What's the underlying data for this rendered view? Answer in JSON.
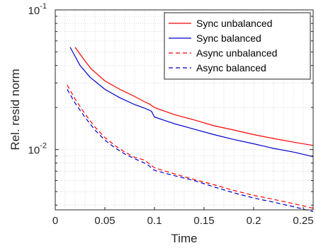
{
  "chart_data": {
    "type": "line",
    "xlabel": "Time",
    "ylabel": "Rel. resid norm",
    "xlim": [
      0,
      0.26
    ],
    "ylim": [
      0.0037,
      0.1
    ],
    "yscale": "log",
    "grid": true,
    "minor_grid": true,
    "legend_position": "top-right",
    "x_ticks": [
      {
        "value": 0,
        "label": "0"
      },
      {
        "value": 0.05,
        "label": "0.05"
      },
      {
        "value": 0.1,
        "label": "0.1"
      },
      {
        "value": 0.15,
        "label": "0.15"
      },
      {
        "value": 0.2,
        "label": "0.2"
      },
      {
        "value": 0.25,
        "label": "0.25"
      }
    ],
    "y_ticks": [
      {
        "value": 0.1,
        "base": "10",
        "exp": "-1"
      },
      {
        "value": 0.01,
        "base": "10",
        "exp": "-2"
      }
    ],
    "series": [
      {
        "name": "Sync unbalanced",
        "color": "#ff0000",
        "dash": "solid",
        "points": [
          [
            0.02,
            0.054
          ],
          [
            0.028,
            0.045
          ],
          [
            0.036,
            0.038
          ],
          [
            0.05,
            0.031
          ],
          [
            0.065,
            0.027
          ],
          [
            0.08,
            0.024
          ],
          [
            0.09,
            0.022
          ],
          [
            0.095,
            0.0212
          ],
          [
            0.1,
            0.02
          ],
          [
            0.12,
            0.0178
          ],
          [
            0.14,
            0.0163
          ],
          [
            0.16,
            0.0148
          ],
          [
            0.18,
            0.0138
          ],
          [
            0.2,
            0.0128
          ],
          [
            0.22,
            0.012
          ],
          [
            0.24,
            0.0113
          ],
          [
            0.26,
            0.0107
          ]
        ]
      },
      {
        "name": "Sync balanced",
        "color": "#0000cc",
        "dash": "solid",
        "points": [
          [
            0.015,
            0.054
          ],
          [
            0.025,
            0.04
          ],
          [
            0.035,
            0.033
          ],
          [
            0.05,
            0.027
          ],
          [
            0.065,
            0.0235
          ],
          [
            0.08,
            0.021
          ],
          [
            0.09,
            0.0198
          ],
          [
            0.097,
            0.0188
          ],
          [
            0.1,
            0.0171
          ],
          [
            0.12,
            0.0153
          ],
          [
            0.14,
            0.014
          ],
          [
            0.16,
            0.0128
          ],
          [
            0.18,
            0.0118
          ],
          [
            0.2,
            0.011
          ],
          [
            0.22,
            0.0102
          ],
          [
            0.24,
            0.0096
          ],
          [
            0.26,
            0.0089
          ]
        ]
      },
      {
        "name": "Async unbalanced",
        "color": "#ff0000",
        "dash": "dashed",
        "points": [
          [
            0.012,
            0.029
          ],
          [
            0.02,
            0.023
          ],
          [
            0.03,
            0.018
          ],
          [
            0.04,
            0.0145
          ],
          [
            0.05,
            0.0122
          ],
          [
            0.06,
            0.0107
          ],
          [
            0.07,
            0.0096
          ],
          [
            0.08,
            0.0088
          ],
          [
            0.09,
            0.0084
          ],
          [
            0.095,
            0.0079
          ],
          [
            0.1,
            0.0074
          ],
          [
            0.12,
            0.0067
          ],
          [
            0.14,
            0.0061
          ],
          [
            0.16,
            0.0056
          ],
          [
            0.18,
            0.0051
          ],
          [
            0.2,
            0.0047
          ],
          [
            0.22,
            0.0044
          ],
          [
            0.24,
            0.0041
          ],
          [
            0.26,
            0.0038
          ]
        ]
      },
      {
        "name": "Async balanced",
        "color": "#0000cc",
        "dash": "dashed",
        "points": [
          [
            0.012,
            0.027
          ],
          [
            0.02,
            0.0215
          ],
          [
            0.03,
            0.017
          ],
          [
            0.04,
            0.0138
          ],
          [
            0.05,
            0.0117
          ],
          [
            0.06,
            0.0103
          ],
          [
            0.07,
            0.0093
          ],
          [
            0.08,
            0.0086
          ],
          [
            0.09,
            0.008
          ],
          [
            0.095,
            0.0076
          ],
          [
            0.1,
            0.0071
          ],
          [
            0.12,
            0.0065
          ],
          [
            0.14,
            0.006
          ],
          [
            0.16,
            0.0054
          ],
          [
            0.18,
            0.0049
          ],
          [
            0.2,
            0.0045
          ],
          [
            0.22,
            0.0042
          ],
          [
            0.24,
            0.0039
          ],
          [
            0.26,
            0.0036
          ]
        ]
      }
    ]
  }
}
